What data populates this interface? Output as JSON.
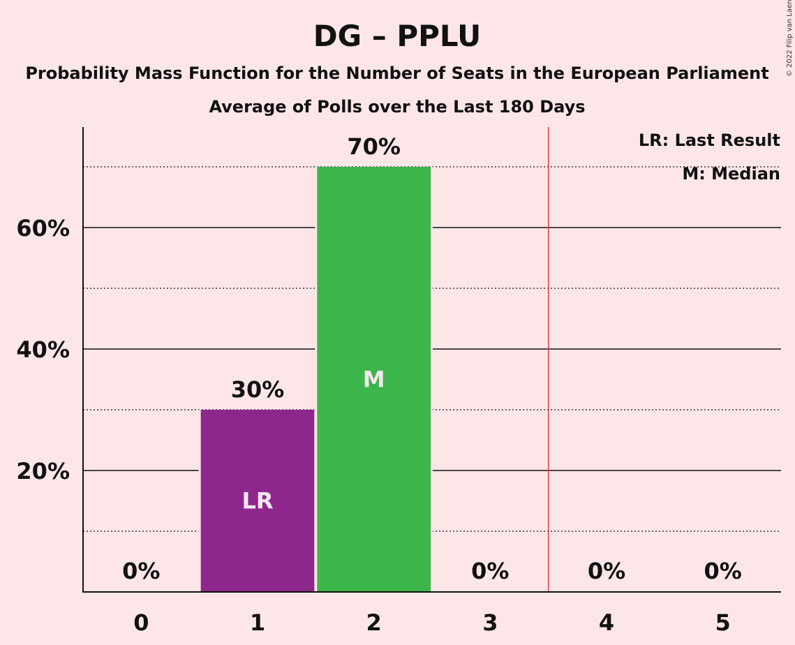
{
  "chart_data": {
    "type": "bar",
    "title": "DG – PPLU",
    "subtitle": "Probability Mass Function for the Number of Seats in the European Parliament",
    "subtitle2": "Average of Polls over the Last 180 Days",
    "categories": [
      "0",
      "1",
      "2",
      "3",
      "4",
      "5"
    ],
    "values": [
      0,
      30,
      70,
      0,
      0,
      0
    ],
    "value_labels": [
      "0%",
      "30%",
      "70%",
      "0%",
      "0%",
      "0%"
    ],
    "bar_colors": [
      "#8e278c",
      "#8e278c",
      "#3cb54a",
      "#8e278c",
      "#8e278c",
      "#8e278c"
    ],
    "inbar_labels": [
      "",
      "LR",
      "M",
      "",
      "",
      ""
    ],
    "ylim": [
      0,
      76
    ],
    "yticks_major": [
      20,
      40,
      60
    ],
    "ytick_labels": [
      "20%",
      "40%",
      "60%"
    ],
    "yticks_minor": [
      10,
      30,
      50,
      70
    ],
    "majority_line_after_category": "3",
    "majority_line_color": "#e8374b",
    "legend": [
      "LR: Last Result",
      "M: Median"
    ],
    "legend_position": "top-right",
    "copyright": "© 2022 Filip van Laenen",
    "xlabel": "",
    "ylabel": ""
  }
}
